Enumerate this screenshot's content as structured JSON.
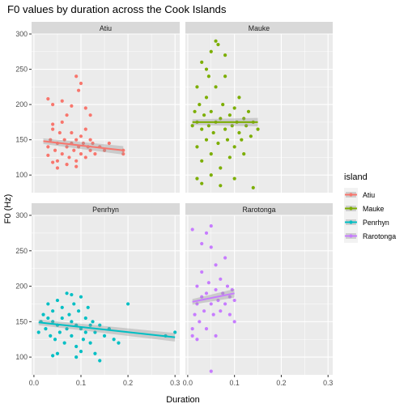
{
  "chart_data": {
    "type": "scatter",
    "title": "F0 values by duration across the Cook Islands",
    "xlabel": "Duration",
    "ylabel": "F0 (Hz)",
    "xlim": [
      -0.005,
      0.31
    ],
    "ylim": [
      75,
      300
    ],
    "x_ticks": [
      0.0,
      0.1,
      0.2,
      0.3
    ],
    "x_tick_labels": [
      "0.0",
      "0.1",
      "0.2",
      "0.3"
    ],
    "y_ticks": [
      100,
      150,
      200,
      250,
      300
    ],
    "y_tick_labels": [
      "100",
      "150",
      "200",
      "250",
      "300"
    ],
    "grid": true,
    "legend": {
      "title": "island",
      "position": "right",
      "entries": [
        "Atiu",
        "Mauke",
        "Penrhyn",
        "Rarotonga"
      ]
    },
    "colors": {
      "Atiu": "#F8766D",
      "Mauke": "#7CAE00",
      "Penrhyn": "#00BFC4",
      "Rarotonga": "#C77CFF",
      "panel_bg": "#EBEBEB",
      "strip_bg": "#D9D9D9",
      "grid": "#FFFFFF"
    },
    "facets": [
      {
        "name": "Atiu",
        "trend": {
          "x": [
            0.02,
            0.19
          ],
          "y": [
            148,
            135
          ]
        },
        "points": [
          [
            0.03,
            128
          ],
          [
            0.03,
            140
          ],
          [
            0.035,
            150
          ],
          [
            0.04,
            165
          ],
          [
            0.04,
            172
          ],
          [
            0.045,
            135
          ],
          [
            0.05,
            120
          ],
          [
            0.05,
            145
          ],
          [
            0.055,
            160
          ],
          [
            0.06,
            175
          ],
          [
            0.06,
            130
          ],
          [
            0.065,
            150
          ],
          [
            0.07,
            140
          ],
          [
            0.07,
            185
          ],
          [
            0.075,
            125
          ],
          [
            0.08,
            145
          ],
          [
            0.08,
            160
          ],
          [
            0.085,
            135
          ],
          [
            0.09,
            150
          ],
          [
            0.09,
            120
          ],
          [
            0.095,
            140
          ],
          [
            0.1,
            155
          ],
          [
            0.1,
            130
          ],
          [
            0.105,
            145
          ],
          [
            0.11,
            165
          ],
          [
            0.11,
            125
          ],
          [
            0.115,
            140
          ],
          [
            0.12,
            150
          ],
          [
            0.12,
            135
          ],
          [
            0.125,
            145
          ],
          [
            0.13,
            130
          ],
          [
            0.14,
            140
          ],
          [
            0.15,
            135
          ],
          [
            0.16,
            145
          ],
          [
            0.19,
            135
          ],
          [
            0.19,
            130
          ],
          [
            0.03,
            208
          ],
          [
            0.04,
            200
          ],
          [
            0.06,
            205
          ],
          [
            0.08,
            198
          ],
          [
            0.09,
            240
          ],
          [
            0.095,
            220
          ],
          [
            0.1,
            230
          ],
          [
            0.11,
            195
          ],
          [
            0.12,
            185
          ],
          [
            0.05,
            110
          ],
          [
            0.07,
            115
          ],
          [
            0.09,
            112
          ],
          [
            0.04,
            118
          ]
        ]
      },
      {
        "name": "Mauke",
        "trend": {
          "x": [
            0.01,
            0.15
          ],
          "y": [
            175,
            175
          ]
        },
        "points": [
          [
            0.02,
            175
          ],
          [
            0.02,
            140
          ],
          [
            0.025,
            200
          ],
          [
            0.03,
            165
          ],
          [
            0.03,
            120
          ],
          [
            0.035,
            185
          ],
          [
            0.04,
            150
          ],
          [
            0.04,
            210
          ],
          [
            0.045,
            170
          ],
          [
            0.05,
            130
          ],
          [
            0.05,
            190
          ],
          [
            0.055,
            160
          ],
          [
            0.06,
            175
          ],
          [
            0.06,
            225
          ],
          [
            0.065,
            145
          ],
          [
            0.07,
            180
          ],
          [
            0.07,
            110
          ],
          [
            0.075,
            200
          ],
          [
            0.08,
            165
          ],
          [
            0.08,
            240
          ],
          [
            0.085,
            150
          ],
          [
            0.09,
            185
          ],
          [
            0.09,
            125
          ],
          [
            0.095,
            170
          ],
          [
            0.1,
            195
          ],
          [
            0.1,
            140
          ],
          [
            0.105,
            175
          ],
          [
            0.11,
            160
          ],
          [
            0.11,
            210
          ],
          [
            0.115,
            150
          ],
          [
            0.12,
            180
          ],
          [
            0.12,
            130
          ],
          [
            0.125,
            170
          ],
          [
            0.13,
            190
          ],
          [
            0.135,
            155
          ],
          [
            0.14,
            175
          ],
          [
            0.15,
            165
          ],
          [
            0.06,
            290
          ],
          [
            0.065,
            285
          ],
          [
            0.05,
            275
          ],
          [
            0.08,
            270
          ],
          [
            0.03,
            260
          ],
          [
            0.04,
            250
          ],
          [
            0.02,
            95
          ],
          [
            0.03,
            88
          ],
          [
            0.05,
            100
          ],
          [
            0.07,
            85
          ],
          [
            0.1,
            95
          ],
          [
            0.14,
            82
          ],
          [
            0.02,
            225
          ],
          [
            0.045,
            240
          ],
          [
            0.01,
            170
          ],
          [
            0.015,
            190
          ]
        ]
      },
      {
        "name": "Penrhyn",
        "trend": {
          "x": [
            0.01,
            0.3
          ],
          "y": [
            149,
            128
          ]
        },
        "points": [
          [
            0.01,
            135
          ],
          [
            0.015,
            150
          ],
          [
            0.02,
            160
          ],
          [
            0.025,
            140
          ],
          [
            0.03,
            155
          ],
          [
            0.03,
            175
          ],
          [
            0.035,
            130
          ],
          [
            0.04,
            150
          ],
          [
            0.04,
            165
          ],
          [
            0.045,
            125
          ],
          [
            0.05,
            145
          ],
          [
            0.05,
            180
          ],
          [
            0.055,
            135
          ],
          [
            0.06,
            155
          ],
          [
            0.06,
            170
          ],
          [
            0.065,
            120
          ],
          [
            0.07,
            140
          ],
          [
            0.07,
            190
          ],
          [
            0.075,
            160
          ],
          [
            0.08,
            130
          ],
          [
            0.08,
            150
          ],
          [
            0.085,
            175
          ],
          [
            0.09,
            145
          ],
          [
            0.09,
            115
          ],
          [
            0.095,
            165
          ],
          [
            0.1,
            140
          ],
          [
            0.1,
            185
          ],
          [
            0.105,
            125
          ],
          [
            0.11,
            155
          ],
          [
            0.11,
            135
          ],
          [
            0.115,
            170
          ],
          [
            0.12,
            145
          ],
          [
            0.12,
            120
          ],
          [
            0.125,
            150
          ],
          [
            0.13,
            135
          ],
          [
            0.14,
            145
          ],
          [
            0.15,
            130
          ],
          [
            0.16,
            140
          ],
          [
            0.17,
            125
          ],
          [
            0.18,
            120
          ],
          [
            0.2,
            175
          ],
          [
            0.3,
            135
          ],
          [
            0.28,
            130
          ],
          [
            0.04,
            102
          ],
          [
            0.05,
            105
          ],
          [
            0.09,
            100
          ],
          [
            0.1,
            108
          ],
          [
            0.13,
            105
          ],
          [
            0.14,
            95
          ],
          [
            0.08,
            188
          ]
        ]
      },
      {
        "name": "Rarotonga",
        "trend": {
          "x": [
            0.01,
            0.1
          ],
          "y": [
            178,
            190
          ]
        },
        "points": [
          [
            0.01,
            140
          ],
          [
            0.01,
            280
          ],
          [
            0.015,
            160
          ],
          [
            0.02,
            175
          ],
          [
            0.02,
            200
          ],
          [
            0.025,
            150
          ],
          [
            0.03,
            185
          ],
          [
            0.03,
            220
          ],
          [
            0.035,
            165
          ],
          [
            0.04,
            190
          ],
          [
            0.04,
            140
          ],
          [
            0.045,
            205
          ],
          [
            0.05,
            175
          ],
          [
            0.05,
            255
          ],
          [
            0.055,
            160
          ],
          [
            0.06,
            195
          ],
          [
            0.06,
            230
          ],
          [
            0.065,
            180
          ],
          [
            0.07,
            165
          ],
          [
            0.07,
            210
          ],
          [
            0.075,
            190
          ],
          [
            0.08,
            175
          ],
          [
            0.08,
            240
          ],
          [
            0.085,
            200
          ],
          [
            0.09,
            185
          ],
          [
            0.09,
            160
          ],
          [
            0.095,
            195
          ],
          [
            0.1,
            180
          ],
          [
            0.1,
            150
          ],
          [
            0.04,
            275
          ],
          [
            0.05,
            285
          ],
          [
            0.03,
            260
          ],
          [
            0.01,
            130
          ],
          [
            0.02,
            125
          ],
          [
            0.06,
            130
          ],
          [
            0.05,
            80
          ]
        ]
      }
    ]
  }
}
